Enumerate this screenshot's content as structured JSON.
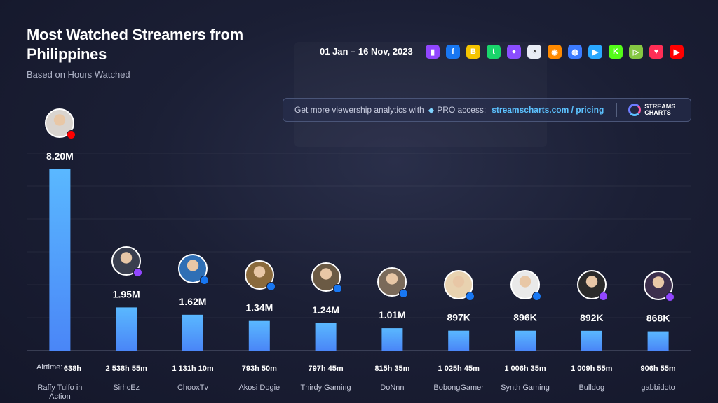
{
  "header": {
    "title": "Most Watched Streamers from Philippines",
    "subtitle": "Based on Hours Watched",
    "date_range": "01 Jan – 16 Nov, 2023"
  },
  "platforms": [
    {
      "icon": "twitch-icon",
      "glyph": "▮",
      "color": "#9146ff"
    },
    {
      "icon": "facebook-icon",
      "glyph": "f",
      "color": "#1877f2"
    },
    {
      "icon": "booyah-icon",
      "glyph": "B",
      "color": "#f5c400"
    },
    {
      "icon": "trovo-icon",
      "glyph": "t",
      "color": "#19d66b"
    },
    {
      "icon": "nimo-icon",
      "glyph": "●",
      "color": "#8a4dff"
    },
    {
      "icon": "afreeca-icon",
      "glyph": "◔",
      "color": "#e8ecf5"
    },
    {
      "icon": "huya-icon",
      "glyph": "◉",
      "color": "#ff8a00"
    },
    {
      "icon": "bilibili-icon",
      "glyph": "◍",
      "color": "#3c7bff"
    },
    {
      "icon": "vk-play-icon",
      "glyph": "▶",
      "color": "#2aa8ff"
    },
    {
      "icon": "kick-icon",
      "glyph": "K",
      "color": "#53fc18"
    },
    {
      "icon": "rumble-icon",
      "glyph": "▷",
      "color": "#85c742"
    },
    {
      "icon": "heart-icon",
      "glyph": "♥",
      "color": "#ff2d55"
    },
    {
      "icon": "youtube-icon",
      "glyph": "▶",
      "color": "#ff0000"
    }
  ],
  "promo": {
    "text": "Get more viewership analytics with",
    "pro": "PRO access:",
    "link": "streamscharts.com / pricing",
    "logo_line1": "STREAMS",
    "logo_line2": "CHARTS"
  },
  "airtime_label": "Airtime:",
  "chart_data": {
    "type": "bar",
    "title": "Most Watched Streamers from Philippines",
    "subtitle": "Based on Hours Watched",
    "ylabel": "",
    "xlabel": "",
    "ylim": [
      0,
      8.2
    ],
    "grid": true,
    "categories": [
      "Raffy Tulfo in Action",
      "SirhcEz",
      "ChooxTv",
      "Akosi Dogie",
      "Thirdy Gaming",
      "DoNnn",
      "BobongGamer",
      "Synth Gaming",
      "Bulldog",
      "gabbidoto"
    ],
    "values": [
      8.2,
      1.95,
      1.62,
      1.34,
      1.24,
      1.01,
      0.897,
      0.896,
      0.892,
      0.868
    ],
    "value_labels": [
      "8.20M",
      "1.95M",
      "1.62M",
      "1.34M",
      "1.24M",
      "1.01M",
      "897K",
      "896K",
      "892K",
      "868K"
    ],
    "airtime": [
      "638h",
      "2 538h 55m",
      "1 131h 10m",
      "793h 50m",
      "797h 45m",
      "815h 35m",
      "1 025h 45m",
      "1 006h 35m",
      "1 009h 55m",
      "906h 55m"
    ],
    "platform": [
      "youtube",
      "twitch",
      "facebook",
      "facebook",
      "facebook",
      "facebook",
      "facebook",
      "facebook",
      "twitch",
      "twitch"
    ],
    "avatar_colors": [
      "#d9d4cf",
      "#3a3f4f",
      "#2f6fb5",
      "#8a6a3c",
      "#6b5a44",
      "#7a6a5a",
      "#e8d2b0",
      "#e9e9e9",
      "#2b2b2b",
      "#3d2f4d"
    ],
    "colors": {
      "bar_top": "#5ab8ff",
      "bar_bottom": "#4a86f7",
      "platform_youtube": "#ff0000",
      "platform_twitch": "#9146ff",
      "platform_facebook": "#1877f2"
    }
  }
}
